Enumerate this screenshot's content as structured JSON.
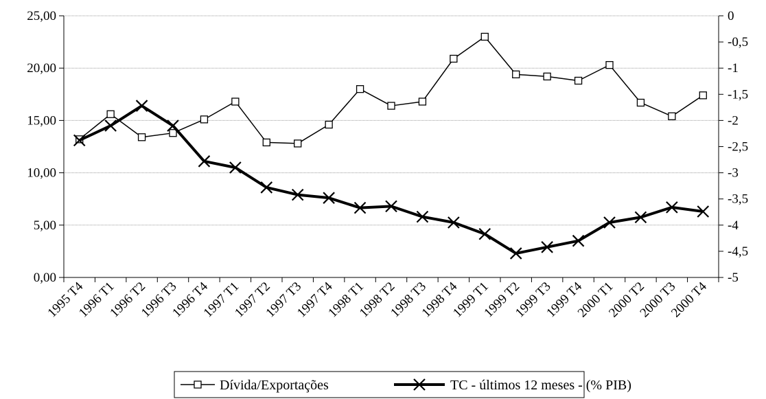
{
  "chart_data": {
    "type": "line",
    "title": "",
    "xlabel": "",
    "ylabel": "",
    "categories": [
      "1995 T4",
      "1996 T1",
      "1996 T2",
      "1996 T3",
      "1996 T4",
      "1997 T1",
      "1997 T2",
      "1997 T3",
      "1997 T4",
      "1998 T1",
      "1998 T2",
      "1998 T3",
      "1998 T4",
      "1999 T1",
      "1999 T2",
      "1999 T3",
      "1999 T4",
      "2000 T1",
      "2000 T2",
      "2000 T3",
      "2000 T4"
    ],
    "y_left": {
      "min": 0,
      "max": 25,
      "step": 5,
      "tick_labels": [
        "0,00",
        "5,00",
        "10,00",
        "15,00",
        "20,00",
        "25,00"
      ]
    },
    "y_right": {
      "min": -5,
      "max": 0,
      "step": 0.5,
      "tick_labels": [
        "-5",
        "-4,5",
        "-4",
        "-3,5",
        "-3",
        "-2,5",
        "-2",
        "-1,5",
        "-1",
        "-0,5",
        "0"
      ]
    },
    "grid": "horizontal",
    "legend_position": "bottom",
    "series": [
      {
        "name": "Dívida/Exportações",
        "axis": "left",
        "marker": "square",
        "color": "#000000",
        "values": [
          13.2,
          15.6,
          13.4,
          13.8,
          15.1,
          16.8,
          12.9,
          12.8,
          14.6,
          18.0,
          16.4,
          16.8,
          20.9,
          23.0,
          19.4,
          19.2,
          18.8,
          20.3,
          16.7,
          15.4,
          17.4
        ]
      },
      {
        "name": "TC - últimos 12 meses - (% PIB)",
        "axis": "right",
        "marker": "x",
        "color": "#000000",
        "values": [
          -2.38,
          -2.1,
          -1.72,
          -2.1,
          -2.78,
          -2.9,
          -3.28,
          -3.42,
          -3.48,
          -3.67,
          -3.64,
          -3.84,
          -3.95,
          -4.17,
          -4.54,
          -4.42,
          -4.3,
          -3.95,
          -3.85,
          -3.66,
          -3.74
        ]
      }
    ]
  }
}
